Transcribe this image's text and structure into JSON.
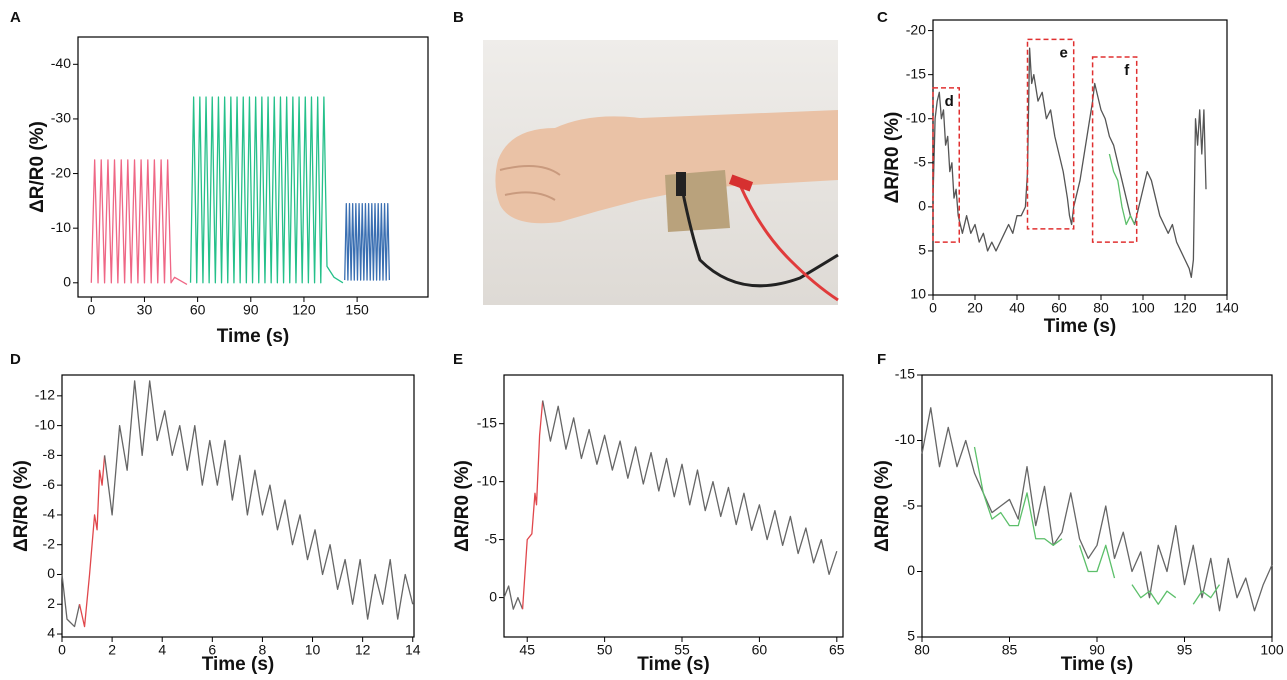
{
  "chart_data": [
    {
      "type": "line",
      "label": "A",
      "xlabel": "Time (s)",
      "ylabel": "ΔR/R0 (%)",
      "xlim": [
        -7.5,
        190
      ],
      "ylim": [
        2.6,
        -45
      ],
      "xticks": [
        0,
        30,
        60,
        90,
        120,
        150
      ],
      "yticks": [
        0,
        -10,
        -20,
        -30,
        -40
      ],
      "series": [
        {
          "color": "#ef6685",
          "x": [
            0,
            1.9,
            3.8,
            5.6,
            7.5,
            9.4,
            11.3,
            13.1,
            15,
            16.9,
            18.8,
            20.6,
            22.5,
            24.4,
            26.3,
            28.1,
            30,
            31.9,
            33.8,
            35.6,
            37.5,
            39.4,
            41.3,
            43.1,
            45,
            47,
            54
          ],
          "values": [
            0,
            -22.5,
            0,
            -22.5,
            0,
            -22.5,
            0,
            -22.5,
            0,
            -22.5,
            0,
            -22.5,
            0,
            -22.5,
            0,
            -22.5,
            0,
            -22.5,
            0,
            -22.5,
            0,
            -22.5,
            0,
            -22.5,
            0,
            -1,
            0.3
          ]
        },
        {
          "color": "#25c08a",
          "x": [
            56,
            57.75,
            59.5,
            61.25,
            63,
            64.75,
            66.5,
            68.25,
            70,
            71.75,
            73.5,
            75.25,
            77,
            78.75,
            80.5,
            82.25,
            84,
            85.75,
            87.5,
            89.25,
            91,
            92.75,
            94.5,
            96.25,
            98,
            99.75,
            101.5,
            103.25,
            105,
            106.75,
            108.5,
            110.25,
            112,
            113.75,
            115.5,
            117.25,
            119,
            120.75,
            122.5,
            124.25,
            126,
            127.75,
            129.5,
            131.25,
            133,
            137,
            142
          ],
          "values": [
            0,
            -34,
            0,
            -34,
            0,
            -34,
            0,
            -34,
            0,
            -34,
            0,
            -34,
            0,
            -34,
            0,
            -34,
            0,
            -34,
            0,
            -34,
            0,
            -34,
            0,
            -34,
            0,
            -34,
            0,
            -34,
            0,
            -34,
            0,
            -34,
            0,
            -34,
            0,
            -34,
            0,
            -34,
            0,
            -34,
            0,
            -34,
            0,
            -34,
            -3,
            -1,
            0
          ]
        },
        {
          "color": "#3a6fb2",
          "x": [
            143,
            143.9,
            144.8,
            145.7,
            146.6,
            147.5,
            148.4,
            149.3,
            150.2,
            151.1,
            152,
            152.9,
            153.8,
            154.7,
            155.6,
            156.5,
            157.4,
            158.3,
            159.2,
            160.1,
            161,
            161.9,
            162.8,
            163.7,
            164.6,
            165.5,
            166.4,
            167.3,
            168.2
          ],
          "values": [
            -0.5,
            -14.5,
            -0.5,
            -14.5,
            -0.5,
            -14.5,
            -0.5,
            -14.5,
            -0.5,
            -14.5,
            -0.5,
            -14.5,
            -0.5,
            -14.5,
            -0.5,
            -14.5,
            -0.5,
            -14.5,
            -0.5,
            -14.5,
            -0.5,
            -14.5,
            -0.5,
            -14.5,
            -0.5,
            -14.5,
            -0.5,
            -14.5,
            -0.5
          ]
        }
      ]
    },
    {
      "type": "image",
      "label": "B"
    },
    {
      "type": "line",
      "label": "C",
      "xlabel": "Time (s)",
      "ylabel": "ΔR/R0 (%)",
      "xlim": [
        0,
        140
      ],
      "ylim": [
        10,
        -21.2
      ],
      "xticks": [
        0,
        20,
        40,
        60,
        80,
        100,
        120,
        140
      ],
      "yticks": [
        -20,
        -15,
        -10,
        -5,
        0,
        5,
        10
      ],
      "series": [
        {
          "color": "#555555",
          "x": [
            0,
            1,
            2,
            3,
            4,
            5,
            6,
            7,
            8,
            9,
            10,
            11,
            12,
            13,
            14,
            16,
            18,
            20,
            22,
            24,
            26,
            28,
            30,
            32,
            34,
            36,
            38,
            40,
            42,
            44,
            45,
            46,
            47,
            48,
            50,
            52,
            54,
            56,
            58,
            60,
            62,
            64,
            65,
            66,
            67,
            68,
            70,
            72,
            74,
            76,
            77,
            78,
            79,
            80,
            82,
            84,
            86,
            88,
            90,
            92,
            94,
            96,
            98,
            100,
            102,
            104,
            106,
            108,
            110,
            112,
            114,
            116,
            118,
            120,
            122,
            123,
            124,
            125,
            126,
            127,
            128,
            129,
            130
          ],
          "values": [
            -1,
            -10,
            -12,
            -13,
            -10,
            -11,
            -7,
            -8,
            -4,
            -5,
            -1,
            -2,
            1,
            2,
            3,
            1,
            3,
            2,
            4,
            3,
            5,
            4,
            5,
            4,
            3,
            2,
            3,
            1,
            1,
            0,
            -4,
            -18,
            -14,
            -15,
            -12,
            -13,
            -10,
            -11,
            -8,
            -6,
            -4,
            -1,
            1,
            2,
            0,
            -1,
            -3,
            -6,
            -9,
            -12,
            -14,
            -13,
            -12,
            -11,
            -10,
            -8,
            -7,
            -5,
            -3,
            -1,
            1,
            2,
            0,
            -2,
            -4,
            -3,
            -1,
            1,
            2,
            3,
            2,
            4,
            5,
            6,
            7,
            8,
            6,
            -10,
            -7,
            -11,
            -6,
            -11,
            -2
          ]
        },
        {
          "color": "#5cbf6a",
          "x": [
            84,
            86,
            88,
            90,
            92,
            94,
            96
          ],
          "values": [
            -6,
            -4,
            -3,
            0,
            2,
            1,
            2
          ]
        }
      ],
      "annotations": [
        {
          "text": "d",
          "x": [
            0,
            12.5
          ],
          "y": [
            4,
            -13.5
          ]
        },
        {
          "text": "e",
          "x": [
            45,
            67
          ],
          "y": [
            2.5,
            -19
          ]
        },
        {
          "text": "f",
          "x": [
            76,
            97
          ],
          "y": [
            4,
            -17
          ]
        }
      ]
    },
    {
      "type": "line",
      "label": "D",
      "xlabel": "Time (s)",
      "ylabel": "ΔR/R0 (%)",
      "xlim": [
        0,
        14.05
      ],
      "ylim": [
        4.2,
        -13.4
      ],
      "xticks": [
        0,
        2,
        4,
        6,
        8,
        10,
        12,
        14
      ],
      "yticks": [
        -12,
        -10,
        -8,
        -6,
        -4,
        -2,
        0,
        2,
        4
      ],
      "series": [
        {
          "color": "#666666",
          "x": [
            0,
            0.2,
            0.5,
            0.7
          ],
          "values": [
            0,
            3,
            3.5,
            2
          ]
        },
        {
          "color": "#e0474c",
          "x": [
            0.7,
            0.9,
            1.1,
            1.3,
            1.4,
            1.5,
            1.6,
            1.7
          ],
          "values": [
            2,
            3.5,
            0,
            -4,
            -3,
            -7,
            -6,
            -8
          ]
        },
        {
          "color": "#666666",
          "x": [
            1.7,
            2,
            2.3,
            2.6,
            2.9,
            3.2,
            3.5,
            3.8,
            4.1,
            4.4,
            4.7,
            5,
            5.3,
            5.6,
            5.9,
            6.2,
            6.5,
            6.8,
            7.1,
            7.4,
            7.7,
            8,
            8.3,
            8.6,
            8.9,
            9.2,
            9.5,
            9.8,
            10.1,
            10.4,
            10.7,
            11,
            11.3,
            11.6,
            11.9,
            12.2,
            12.5,
            12.8,
            13.1,
            13.4,
            13.7,
            14
          ],
          "values": [
            -8,
            -4,
            -10,
            -7,
            -13,
            -8,
            -13,
            -9,
            -11,
            -8,
            -10,
            -7,
            -10,
            -6,
            -9,
            -6,
            -9,
            -5,
            -8,
            -4,
            -7,
            -4,
            -6,
            -3,
            -5,
            -2,
            -4,
            -1,
            -3,
            0,
            -2,
            1,
            -1,
            2,
            -1,
            3,
            0,
            2,
            -1,
            3,
            0,
            2
          ]
        }
      ]
    },
    {
      "type": "line",
      "label": "E",
      "xlabel": "Time (s)",
      "ylabel": "ΔR/R0 (%)",
      "xlim": [
        43.5,
        65.4
      ],
      "ylim": [
        3.4,
        -19.2
      ],
      "xticks": [
        45,
        50,
        55,
        60,
        65
      ],
      "yticks": [
        -15,
        -10,
        -5,
        0
      ],
      "series": [
        {
          "color": "#666666",
          "x": [
            43.5,
            43.8,
            44.1,
            44.4,
            44.7
          ],
          "values": [
            0,
            -1,
            1,
            0,
            1
          ]
        },
        {
          "color": "#e0474c",
          "x": [
            44.7,
            45,
            45.3,
            45.5,
            45.6,
            45.8,
            46
          ],
          "values": [
            1,
            -5,
            -5.5,
            -9,
            -8,
            -14,
            -17
          ]
        },
        {
          "color": "#666666",
          "x": [
            46,
            46.5,
            47,
            47.5,
            48,
            48.5,
            49,
            49.5,
            50,
            50.5,
            51,
            51.5,
            52,
            52.5,
            53,
            53.5,
            54,
            54.5,
            55,
            55.5,
            56,
            56.5,
            57,
            57.5,
            58,
            58.5,
            59,
            59.5,
            60,
            60.5,
            61,
            61.5,
            62,
            62.5,
            63,
            63.5,
            64,
            64.5,
            65
          ],
          "values": [
            -17,
            -13.5,
            -16.5,
            -12.8,
            -15.5,
            -12,
            -14.5,
            -11.5,
            -14,
            -11,
            -13.5,
            -10.3,
            -13,
            -9.8,
            -12.5,
            -9.2,
            -12,
            -8.7,
            -11.5,
            -8,
            -11,
            -7.5,
            -10,
            -7,
            -9.5,
            -6.3,
            -9,
            -5.8,
            -8,
            -5,
            -7.5,
            -4.5,
            -7,
            -3.8,
            -6,
            -3,
            -5,
            -2,
            -4
          ]
        }
      ]
    },
    {
      "type": "line",
      "label": "F",
      "xlabel": "Time (s)",
      "ylabel": "ΔR/R0 (%)",
      "xlim": [
        80,
        100
      ],
      "ylim": [
        5,
        -15
      ],
      "xticks": [
        80,
        85,
        90,
        95,
        100
      ],
      "yticks": [
        -15,
        -10,
        -5,
        0,
        5
      ],
      "series": [
        {
          "color": "#666666",
          "x": [
            80,
            80.5,
            81,
            81.5,
            82,
            82.5,
            83,
            83.5,
            84,
            84.5,
            85,
            85.5,
            86,
            86.5,
            87,
            87.5,
            88,
            88.5,
            89,
            89.5,
            90,
            90.5,
            91,
            91.5,
            92,
            92.5,
            93,
            93.5,
            94,
            94.5,
            95,
            95.5,
            96,
            96.5,
            97,
            97.5,
            98,
            98.5,
            99,
            99.5,
            100
          ],
          "values": [
            -9,
            -12.5,
            -8,
            -11,
            -8,
            -10,
            -7.5,
            -6,
            -4.5,
            -5,
            -5.5,
            -4,
            -8,
            -3.5,
            -6.5,
            -2,
            -3,
            -6,
            -2.5,
            -1,
            -2,
            -5,
            -1,
            -3,
            0,
            -1.5,
            2,
            -2,
            0,
            -3.5,
            1,
            -2,
            2,
            -1,
            3,
            -1,
            2,
            0.5,
            3,
            1,
            -0.5
          ]
        },
        {
          "color": "#5cbf6a",
          "x": [
            83,
            83.5,
            84,
            84.5,
            85,
            85.5,
            86,
            86.5,
            87,
            87.5,
            88,
            88.5,
            89,
            89.5,
            90,
            90.5,
            91,
            91.5,
            92,
            92.5,
            93,
            93.5,
            94,
            94.5,
            95,
            95.5,
            96,
            96.5,
            97
          ],
          "values": [
            -9.5,
            -6,
            -4,
            -4.5,
            -3.5,
            -3.5,
            -6,
            -2.5,
            -2.5,
            -2,
            -2.5,
            null,
            -2,
            0,
            0,
            -2,
            0.5,
            null,
            1,
            2,
            1.5,
            2.5,
            1.5,
            2,
            null,
            2.5,
            1.5,
            2,
            1
          ]
        }
      ]
    }
  ]
}
